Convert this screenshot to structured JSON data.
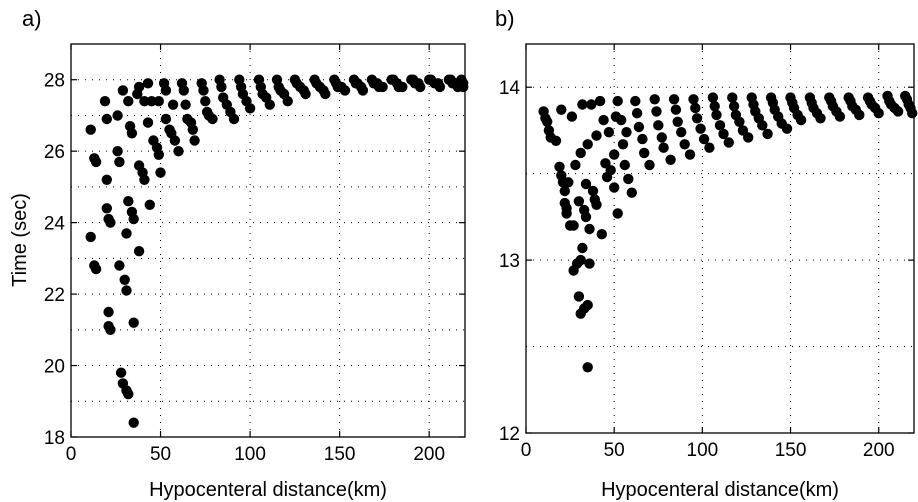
{
  "chart_data": [
    {
      "type": "scatter",
      "panel_label": "a)",
      "xlabel": "Hypocenteral distance(km)",
      "ylabel": "Time (sec)",
      "xlim": [
        0,
        220
      ],
      "ylim": [
        18,
        29
      ],
      "xticks": [
        0,
        50,
        100,
        150,
        200
      ],
      "yticks": [
        18,
        20,
        22,
        24,
        26,
        28
      ],
      "grid": true,
      "marker_color": "#000000",
      "points": [
        [
          11,
          26.6
        ],
        [
          11,
          23.6
        ],
        [
          13,
          25.8
        ],
        [
          13,
          22.8
        ],
        [
          14,
          25.7
        ],
        [
          14,
          22.7
        ],
        [
          19,
          27.4
        ],
        [
          20,
          26.9
        ],
        [
          20,
          25.2
        ],
        [
          20,
          24.4
        ],
        [
          21,
          24.1
        ],
        [
          21,
          21.5
        ],
        [
          21,
          21.1
        ],
        [
          22,
          21.0
        ],
        [
          22,
          24.0
        ],
        [
          26,
          27.0
        ],
        [
          26,
          26.0
        ],
        [
          27,
          25.7
        ],
        [
          27,
          22.8
        ],
        [
          28,
          19.8
        ],
        [
          29,
          19.5
        ],
        [
          30,
          22.4
        ],
        [
          31,
          23.7
        ],
        [
          31,
          22.1
        ],
        [
          31,
          19.3
        ],
        [
          32,
          19.2
        ],
        [
          29,
          27.7
        ],
        [
          32,
          27.4
        ],
        [
          32,
          24.6
        ],
        [
          33,
          26.7
        ],
        [
          34,
          26.5
        ],
        [
          34,
          24.3
        ],
        [
          35,
          24.1
        ],
        [
          35,
          21.2
        ],
        [
          35,
          18.4
        ],
        [
          37,
          27.6
        ],
        [
          38,
          27.8
        ],
        [
          38,
          25.6
        ],
        [
          38,
          23.2
        ],
        [
          40,
          25.4
        ],
        [
          41,
          25.2
        ],
        [
          41,
          27.4
        ],
        [
          43,
          27.9
        ],
        [
          43,
          26.8
        ],
        [
          44,
          24.5
        ],
        [
          45,
          27.4
        ],
        [
          46,
          26.3
        ],
        [
          48,
          26.1
        ],
        [
          49,
          25.9
        ],
        [
          49,
          27.4
        ],
        [
          50,
          25.4
        ],
        [
          52,
          27.9
        ],
        [
          53,
          27.7
        ],
        [
          53,
          26.9
        ],
        [
          55,
          26.6
        ],
        [
          56,
          26.5
        ],
        [
          57,
          27.3
        ],
        [
          58,
          26.3
        ],
        [
          60,
          26.0
        ],
        [
          62,
          27.9
        ],
        [
          63,
          27.7
        ],
        [
          64,
          27.3
        ],
        [
          65,
          26.9
        ],
        [
          67,
          26.8
        ],
        [
          68,
          26.6
        ],
        [
          69,
          26.3
        ],
        [
          73,
          27.9
        ],
        [
          74,
          27.7
        ],
        [
          75,
          27.4
        ],
        [
          76,
          27.1
        ],
        [
          77,
          27.0
        ],
        [
          79,
          26.9
        ],
        [
          83,
          28.0
        ],
        [
          84,
          27.8
        ],
        [
          85,
          27.5
        ],
        [
          87,
          27.3
        ],
        [
          89,
          27.1
        ],
        [
          91,
          26.9
        ],
        [
          94,
          28.0
        ],
        [
          95,
          27.8
        ],
        [
          96,
          27.6
        ],
        [
          98,
          27.4
        ],
        [
          100,
          27.2
        ],
        [
          105,
          28.0
        ],
        [
          106,
          27.8
        ],
        [
          107,
          27.6
        ],
        [
          109,
          27.5
        ],
        [
          111,
          27.3
        ],
        [
          115,
          28.0
        ],
        [
          116,
          27.8
        ],
        [
          117,
          27.7
        ],
        [
          119,
          27.6
        ],
        [
          121,
          27.4
        ],
        [
          125,
          28.0
        ],
        [
          126,
          27.9
        ],
        [
          128,
          27.8
        ],
        [
          130,
          27.7
        ],
        [
          131,
          27.6
        ],
        [
          136,
          28.0
        ],
        [
          137,
          27.9
        ],
        [
          139,
          27.8
        ],
        [
          141,
          27.7
        ],
        [
          142,
          27.6
        ],
        [
          147,
          28.0
        ],
        [
          148,
          27.9
        ],
        [
          149,
          27.8
        ],
        [
          151,
          27.8
        ],
        [
          153,
          27.7
        ],
        [
          158,
          28.0
        ],
        [
          159,
          27.9
        ],
        [
          160,
          27.9
        ],
        [
          162,
          27.8
        ],
        [
          163,
          27.7
        ],
        [
          168,
          28.0
        ],
        [
          169,
          27.9
        ],
        [
          171,
          27.9
        ],
        [
          172,
          27.8
        ],
        [
          174,
          27.8
        ],
        [
          179,
          28.0
        ],
        [
          180,
          28.0
        ],
        [
          182,
          27.9
        ],
        [
          183,
          27.8
        ],
        [
          185,
          27.8
        ],
        [
          190,
          28.0
        ],
        [
          191,
          28.0
        ],
        [
          192,
          27.9
        ],
        [
          194,
          27.9
        ],
        [
          195,
          27.8
        ],
        [
          200,
          28.0
        ],
        [
          201,
          28.0
        ],
        [
          203,
          27.9
        ],
        [
          205,
          27.9
        ],
        [
          206,
          27.8
        ],
        [
          211,
          28.0
        ],
        [
          212,
          28.0
        ],
        [
          213,
          27.9
        ],
        [
          215,
          27.9
        ],
        [
          216,
          27.8
        ],
        [
          218,
          28.0
        ],
        [
          219,
          27.9
        ],
        [
          219,
          27.8
        ]
      ]
    },
    {
      "type": "scatter",
      "panel_label": "b)",
      "xlabel": "Hypocenteral distance(km)",
      "ylabel": "",
      "xlim": [
        0,
        220
      ],
      "ylim": [
        12,
        14.25
      ],
      "xticks": [
        0,
        50,
        100,
        150,
        200
      ],
      "yticks": [
        12,
        13,
        14
      ],
      "grid": true,
      "marker_color": "#000000",
      "points": [
        [
          10,
          13.86
        ],
        [
          11,
          13.82
        ],
        [
          12,
          13.8
        ],
        [
          13,
          13.75
        ],
        [
          14,
          13.71
        ],
        [
          17,
          13.69
        ],
        [
          19,
          13.54
        ],
        [
          20,
          13.49
        ],
        [
          20,
          13.87
        ],
        [
          21,
          13.45
        ],
        [
          22,
          13.4
        ],
        [
          22,
          13.33
        ],
        [
          23,
          13.27
        ],
        [
          23,
          13.3
        ],
        [
          24,
          13.45
        ],
        [
          25,
          13.2
        ],
        [
          26,
          13.83
        ],
        [
          27,
          12.94
        ],
        [
          27,
          13.2
        ],
        [
          28,
          13.55
        ],
        [
          29,
          12.98
        ],
        [
          30,
          12.79
        ],
        [
          30,
          13.34
        ],
        [
          31,
          12.69
        ],
        [
          31,
          13.0
        ],
        [
          31,
          13.62
        ],
        [
          32,
          13.07
        ],
        [
          32,
          13.9
        ],
        [
          33,
          12.72
        ],
        [
          33,
          13.29
        ],
        [
          34,
          13.25
        ],
        [
          34,
          13.44
        ],
        [
          35,
          12.74
        ],
        [
          35,
          13.67
        ],
        [
          35,
          12.38
        ],
        [
          36,
          12.98
        ],
        [
          36,
          13.18
        ],
        [
          37,
          13.9
        ],
        [
          38,
          13.4
        ],
        [
          39,
          13.35
        ],
        [
          40,
          13.32
        ],
        [
          40,
          13.72
        ],
        [
          42,
          13.92
        ],
        [
          43,
          13.15
        ],
        [
          44,
          13.81
        ],
        [
          45,
          13.56
        ],
        [
          46,
          13.48
        ],
        [
          47,
          13.74
        ],
        [
          48,
          13.52
        ],
        [
          50,
          13.61
        ],
        [
          50,
          13.42
        ],
        [
          51,
          13.83
        ],
        [
          52,
          13.27
        ],
        [
          52,
          13.92
        ],
        [
          54,
          13.81
        ],
        [
          55,
          13.67
        ],
        [
          56,
          13.55
        ],
        [
          57,
          13.74
        ],
        [
          58,
          13.47
        ],
        [
          60,
          13.39
        ],
        [
          62,
          13.92
        ],
        [
          63,
          13.85
        ],
        [
          64,
          13.77
        ],
        [
          66,
          13.7
        ],
        [
          67,
          13.62
        ],
        [
          70,
          13.55
        ],
        [
          73,
          13.93
        ],
        [
          74,
          13.86
        ],
        [
          75,
          13.78
        ],
        [
          77,
          13.71
        ],
        [
          78,
          13.65
        ],
        [
          82,
          13.58
        ],
        [
          84,
          13.93
        ],
        [
          85,
          13.87
        ],
        [
          86,
          13.8
        ],
        [
          88,
          13.74
        ],
        [
          90,
          13.67
        ],
        [
          93,
          13.61
        ],
        [
          95,
          13.93
        ],
        [
          96,
          13.88
        ],
        [
          97,
          13.82
        ],
        [
          99,
          13.76
        ],
        [
          101,
          13.7
        ],
        [
          104,
          13.65
        ],
        [
          106,
          13.94
        ],
        [
          107,
          13.89
        ],
        [
          108,
          13.84
        ],
        [
          110,
          13.78
        ],
        [
          112,
          13.73
        ],
        [
          115,
          13.68
        ],
        [
          117,
          13.94
        ],
        [
          118,
          13.89
        ],
        [
          119,
          13.84
        ],
        [
          121,
          13.8
        ],
        [
          123,
          13.75
        ],
        [
          126,
          13.71
        ],
        [
          128,
          13.94
        ],
        [
          129,
          13.9
        ],
        [
          130,
          13.86
        ],
        [
          132,
          13.82
        ],
        [
          134,
          13.78
        ],
        [
          137,
          13.73
        ],
        [
          139,
          13.94
        ],
        [
          140,
          13.91
        ],
        [
          141,
          13.87
        ],
        [
          143,
          13.83
        ],
        [
          145,
          13.79
        ],
        [
          148,
          13.76
        ],
        [
          150,
          13.94
        ],
        [
          151,
          13.91
        ],
        [
          152,
          13.88
        ],
        [
          154,
          13.84
        ],
        [
          156,
          13.81
        ],
        [
          161,
          13.94
        ],
        [
          162,
          13.91
        ],
        [
          163,
          13.88
        ],
        [
          165,
          13.85
        ],
        [
          167,
          13.82
        ],
        [
          172,
          13.94
        ],
        [
          173,
          13.92
        ],
        [
          174,
          13.89
        ],
        [
          176,
          13.86
        ],
        [
          178,
          13.83
        ],
        [
          183,
          13.94
        ],
        [
          184,
          13.92
        ],
        [
          185,
          13.89
        ],
        [
          187,
          13.87
        ],
        [
          189,
          13.84
        ],
        [
          194,
          13.94
        ],
        [
          195,
          13.92
        ],
        [
          196,
          13.9
        ],
        [
          198,
          13.88
        ],
        [
          200,
          13.85
        ],
        [
          205,
          13.95
        ],
        [
          206,
          13.92
        ],
        [
          207,
          13.9
        ],
        [
          209,
          13.88
        ],
        [
          211,
          13.86
        ],
        [
          215,
          13.95
        ],
        [
          216,
          13.93
        ],
        [
          217,
          13.9
        ],
        [
          218,
          13.88
        ],
        [
          219,
          13.85
        ]
      ]
    }
  ]
}
